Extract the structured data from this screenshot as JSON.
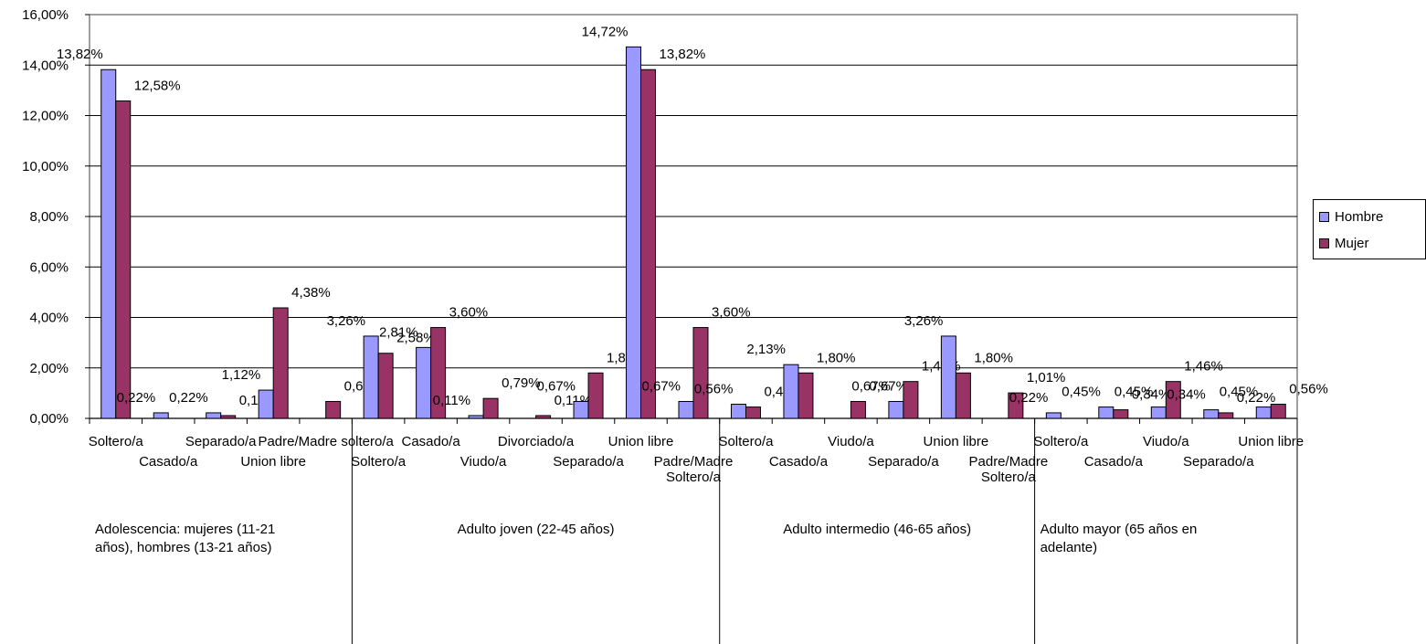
{
  "chart_data": {
    "type": "bar",
    "ylim": [
      0,
      16
    ],
    "yticks": [
      "0,00%",
      "2,00%",
      "4,00%",
      "6,00%",
      "8,00%",
      "10,00%",
      "12,00%",
      "14,00%",
      "16,00%"
    ],
    "grid": true,
    "legend_position": "right",
    "series": [
      {
        "name": "Hombre",
        "color": "#9999FF"
      },
      {
        "name": "Mujer",
        "color": "#993366"
      }
    ],
    "groups": [
      {
        "label": "Adolescencia: mujeres (11-21 años), hombres (13-21 años)",
        "categories": [
          {
            "label": "Soltero/a",
            "hombre": 13.82,
            "mujer": 12.58,
            "hombre_label": "13,82%",
            "mujer_label": "12,58%"
          },
          {
            "label": "Casado/a",
            "hombre": 0.22,
            "mujer": null,
            "hombre_label": "0,22%",
            "mujer_label": null
          },
          {
            "label": "Separado/a",
            "hombre": 0.22,
            "mujer": 0.11,
            "hombre_label": "0,22%",
            "mujer_label": "0,11%"
          },
          {
            "label": "Union libre",
            "hombre": 1.12,
            "mujer": 4.38,
            "hombre_label": "1,12%",
            "mujer_label": "4,38%"
          },
          {
            "label": "Padre/Madre soltero/a",
            "hombre": null,
            "mujer": 0.67,
            "hombre_label": null,
            "mujer_label": "0,67%"
          }
        ]
      },
      {
        "label": "Adulto joven (22-45 años)",
        "categories": [
          {
            "label": "Soltero/a",
            "hombre": 3.26,
            "mujer": 2.58,
            "hombre_label": "3,26%",
            "mujer_label": "2,58%"
          },
          {
            "label": "Casado/a",
            "hombre": 2.81,
            "mujer": 3.6,
            "hombre_label": "2,81%",
            "mujer_label": "3,60%"
          },
          {
            "label": "Viudo/a",
            "hombre": 0.11,
            "mujer": 0.79,
            "hombre_label": "0,11%",
            "mujer_label": "0,79%"
          },
          {
            "label": "Divorciado/a",
            "hombre": null,
            "mujer": 0.11,
            "hombre_label": null,
            "mujer_label": "0,11%"
          },
          {
            "label": "Separado/a",
            "hombre": 0.67,
            "mujer": 1.8,
            "hombre_label": "0,67%",
            "mujer_label": "1,80%"
          },
          {
            "label": "Union libre",
            "hombre": 14.72,
            "mujer": 13.82,
            "hombre_label": "14,72%",
            "mujer_label": "13,82%"
          },
          {
            "label": "Padre/Madre Soltero/a",
            "hombre": 0.67,
            "mujer": 3.6,
            "hombre_label": "0,67%",
            "mujer_label": "3,60%"
          }
        ]
      },
      {
        "label": "Adulto intermedio (46-65 años)",
        "categories": [
          {
            "label": "Soltero/a",
            "hombre": 0.56,
            "mujer": 0.45,
            "hombre_label": "0,56%",
            "mujer_label": "0,45%"
          },
          {
            "label": "Casado/a",
            "hombre": 2.13,
            "mujer": 1.8,
            "hombre_label": "2,13%",
            "mujer_label": "1,80%"
          },
          {
            "label": "Viudo/a",
            "hombre": null,
            "mujer": 0.67,
            "hombre_label": null,
            "mujer_label": "0,67%"
          },
          {
            "label": "Separado/a",
            "hombre": 0.67,
            "mujer": 1.46,
            "hombre_label": "0,67%",
            "mujer_label": "1,46%"
          },
          {
            "label": "Union libre",
            "hombre": 3.26,
            "mujer": 1.8,
            "hombre_label": "3,26%",
            "mujer_label": "1,80%"
          },
          {
            "label": "Padre/Madre Soltero/a",
            "hombre": null,
            "mujer": 1.01,
            "hombre_label": null,
            "mujer_label": "1,01%"
          }
        ]
      },
      {
        "label": "Adulto mayor (65 años en adelante)",
        "categories": [
          {
            "label": "Soltero/a",
            "hombre": 0.22,
            "mujer": null,
            "hombre_label": "0,22%",
            "mujer_label": null
          },
          {
            "label": "Casado/a",
            "hombre": 0.45,
            "mujer": 0.34,
            "hombre_label": "0,45%",
            "mujer_label": "0,34%"
          },
          {
            "label": "Viudo/a",
            "hombre": 0.45,
            "mujer": 1.46,
            "hombre_label": "0,45%",
            "mujer_label": "1,46%"
          },
          {
            "label": "Separado/a",
            "hombre": 0.34,
            "mujer": 0.22,
            "hombre_label": "0,34%",
            "mujer_label": "0,22%"
          },
          {
            "label": "Union libre",
            "hombre": 0.45,
            "mujer": 0.56,
            "hombre_label": "0,45%",
            "mujer_label": "0,56%"
          }
        ]
      }
    ]
  }
}
